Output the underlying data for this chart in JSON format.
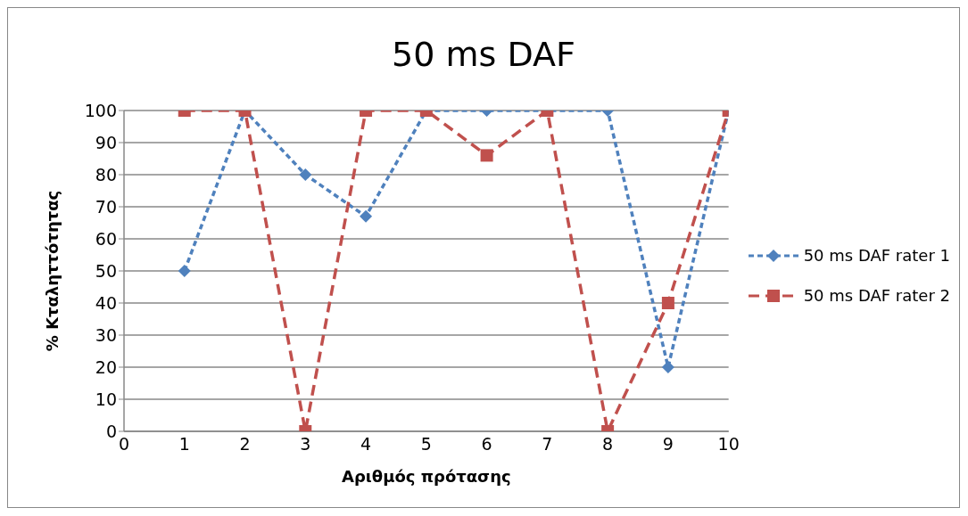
{
  "chart_data": {
    "type": "line",
    "title": "50 ms DAF",
    "xlabel": "Αριθμός πρότασης",
    "ylabel": "% Κταληττότητας",
    "x": [
      1,
      2,
      3,
      4,
      5,
      6,
      7,
      8,
      9,
      10
    ],
    "series": [
      {
        "name": "50 ms DAF rater 1",
        "color": "#4f81bd",
        "marker": "diamond",
        "line_style": "dotted",
        "values": [
          50,
          100,
          80,
          67,
          100,
          100,
          100,
          100,
          20,
          100
        ]
      },
      {
        "name": "50 ms DAF rater 2",
        "color": "#c0504d",
        "marker": "square",
        "line_style": "dashed",
        "values": [
          100,
          100,
          0,
          100,
          100,
          86,
          100,
          0,
          40,
          100
        ]
      }
    ],
    "xlim": [
      0,
      10
    ],
    "xticks": [
      0,
      1,
      2,
      3,
      4,
      5,
      6,
      7,
      8,
      9,
      10
    ],
    "ylim": [
      0,
      100
    ],
    "yticks": [
      0,
      10,
      20,
      30,
      40,
      50,
      60,
      70,
      80,
      90,
      100
    ],
    "grid": "y",
    "legend": "right"
  }
}
